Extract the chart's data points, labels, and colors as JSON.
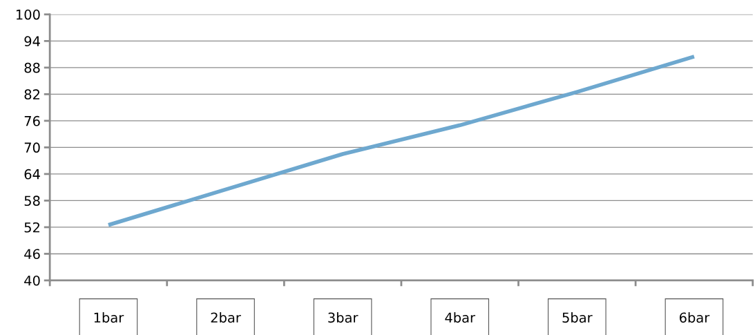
{
  "chart_data": {
    "type": "line",
    "categories": [
      "1bar",
      "2bar",
      "3bar",
      "4bar",
      "5bar",
      "6bar"
    ],
    "series": [
      {
        "color": "#6ea8cf",
        "values": [
          52.5,
          60.5,
          68.5,
          75,
          82.5,
          90.5
        ]
      }
    ],
    "ylim": [
      40,
      100
    ],
    "yticks": [
      40,
      46,
      52,
      58,
      64,
      70,
      76,
      82,
      88,
      94,
      100
    ],
    "grid": "y",
    "legend": false,
    "marker": "none",
    "line_style": "solid"
  }
}
